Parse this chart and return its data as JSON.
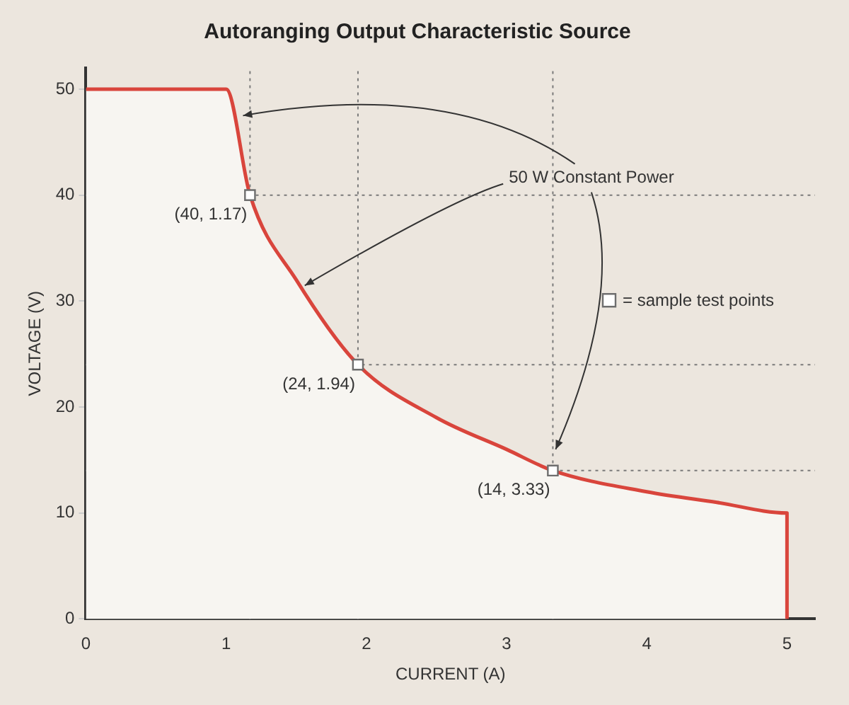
{
  "chart_data": {
    "type": "area",
    "title": "Autoranging Output Characteristic Source",
    "xlabel": "CURRENT (A)",
    "ylabel": "VOLTAGE (V)",
    "xlim": [
      0,
      5.2
    ],
    "xticks": [
      0,
      1,
      2,
      3,
      4,
      5
    ],
    "ylim": [
      0,
      52
    ],
    "yticks": [
      0,
      10,
      20,
      30,
      40,
      50
    ],
    "grid": false,
    "legend": "right",
    "series": [
      {
        "color": "#d9453c",
        "x": [
          0,
          1,
          1.17,
          1.5,
          1.94,
          2.5,
          3,
          3.33,
          4,
          4.5,
          5,
          5
        ],
        "values": [
          50,
          50,
          40,
          32,
          24,
          19,
          16,
          14,
          12,
          11,
          10,
          0
        ]
      },
      {
        "type": "scatter",
        "name": "= sample test points",
        "color": "#6e6e6e",
        "marker": "square",
        "x": [
          1.17,
          1.94,
          3.33
        ],
        "values": [
          40,
          24,
          14
        ]
      }
    ],
    "ref_lines": [
      {
        "axis": "x",
        "value": 1.17,
        "line_style": "dotted"
      },
      {
        "axis": "x",
        "value": 1.94,
        "line_style": "dotted"
      },
      {
        "axis": "x",
        "value": 3.33,
        "line_style": "dotted"
      },
      {
        "axis": "y",
        "value": 40,
        "line_style": "dotted"
      },
      {
        "axis": "y",
        "value": 24,
        "line_style": "dotted"
      },
      {
        "axis": "y",
        "value": 14,
        "line_style": "dotted"
      }
    ],
    "annotations": [
      {
        "text": "(40, 1.17)",
        "x": 1.17,
        "y": 40
      },
      {
        "text": "(24, 1.94)",
        "x": 1.94,
        "y": 24
      },
      {
        "text": "(14, 3.33)",
        "x": 3.33,
        "y": 14
      },
      {
        "text": "50 W Constant Power",
        "x": 1.5,
        "y": 32
      }
    ]
  }
}
